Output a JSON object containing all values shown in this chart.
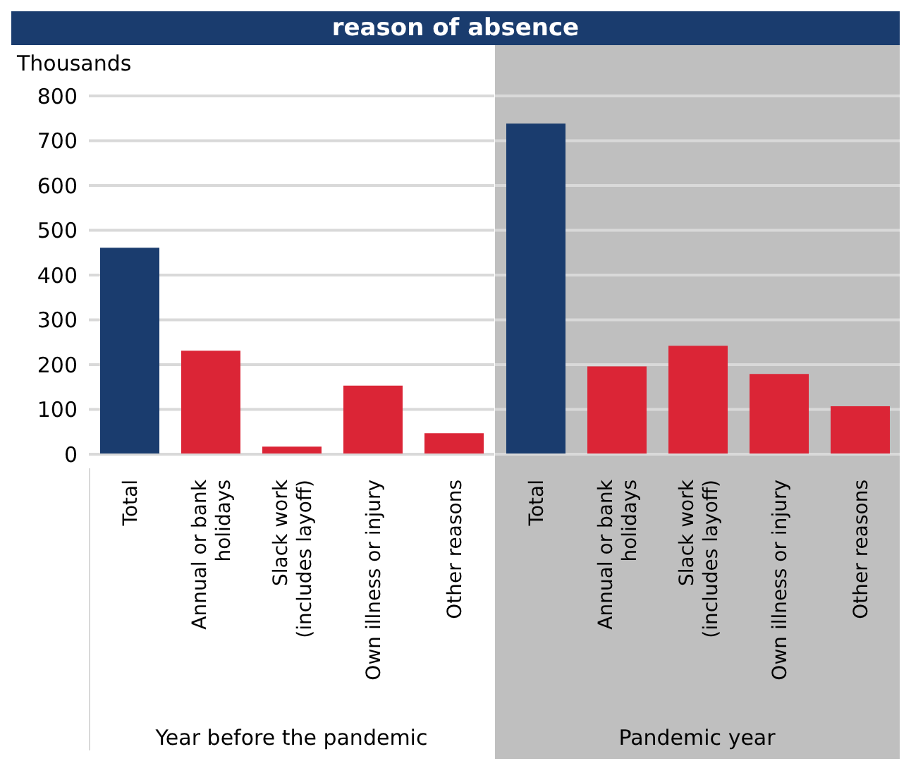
{
  "chart_data": [
    {
      "type": "bar",
      "title": "reason of absence",
      "ylabel": "Thousands",
      "xlabel": "Year before the pandemic",
      "categories": [
        "Total",
        "Annual or bank holidays",
        "Slack work (includes layoff)",
        "Own illness or injury",
        "Other reasons"
      ],
      "series": [
        {
          "values": [
            461,
            231,
            17,
            153,
            47
          ],
          "colors": [
            "#1a3c6e",
            "#db2536",
            "#db2536",
            "#db2536",
            "#db2536"
          ]
        }
      ],
      "ylim": [
        0,
        800
      ],
      "yticks": [
        0,
        100,
        200,
        300,
        400,
        500,
        600,
        700,
        800
      ],
      "grid": "y"
    },
    {
      "type": "bar",
      "xlabel": "Pandemic year",
      "categories": [
        "Total",
        "Annual or bank holidays",
        "Slack work (includes layoff)",
        "Own illness or injury",
        "Other reasons"
      ],
      "series": [
        {
          "values": [
            738,
            196,
            242,
            179,
            107
          ],
          "colors": [
            "#1a3c6e",
            "#db2536",
            "#db2536",
            "#db2536",
            "#db2536"
          ]
        }
      ],
      "ylim": [
        0,
        800
      ],
      "yticks": [
        0,
        100,
        200,
        300,
        400,
        500,
        600,
        700,
        800
      ],
      "grid": "y",
      "tick_labels": "x"
    }
  ]
}
